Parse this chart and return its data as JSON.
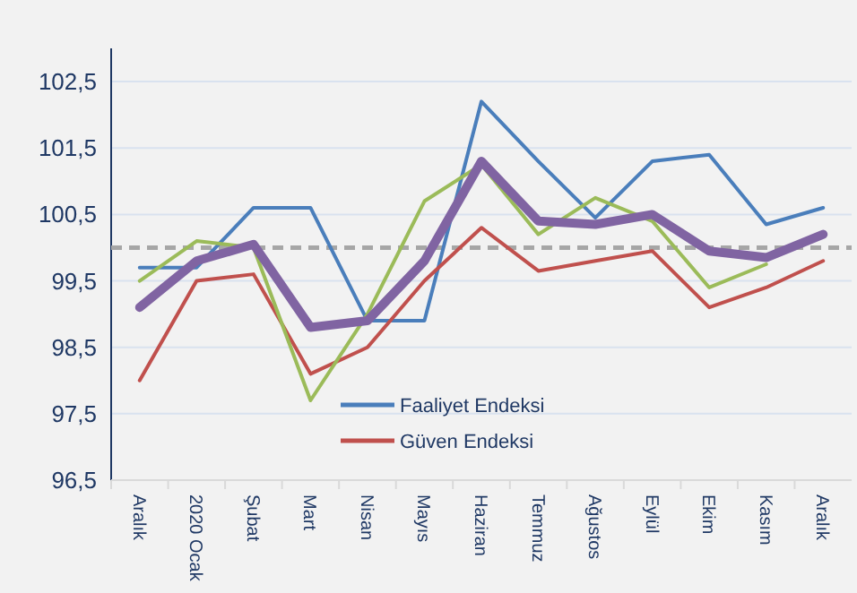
{
  "chart_data": {
    "type": "line",
    "categories": [
      "Aralık",
      "2020 Ocak",
      "Şubat",
      "Mart",
      "Nisan",
      "Mayıs",
      "Haziran",
      "Temmuz",
      "Ağustos",
      "Eylül",
      "Ekim",
      "Kasım",
      "Aralık"
    ],
    "series": [
      {
        "name": "Faaliyet Endeksi",
        "color": "#4a7ebb",
        "values": [
          99.7,
          99.7,
          100.6,
          100.6,
          98.9,
          98.9,
          102.2,
          101.3,
          100.45,
          101.3,
          101.4,
          100.35,
          100.6
        ]
      },
      {
        "name": "Güven Endeksi",
        "color": "#c0504d",
        "values": [
          98.0,
          99.5,
          99.6,
          98.1,
          98.5,
          99.5,
          100.3,
          99.65,
          99.8,
          99.95,
          99.1,
          99.4,
          99.8
        ]
      },
      {
        "color": "#9bbb59",
        "values": [
          99.5,
          100.1,
          100.0,
          97.7,
          99.0,
          100.7,
          101.25,
          100.2,
          100.75,
          100.4,
          99.4,
          99.75,
          null
        ]
      },
      {
        "color": "#8064a2",
        "values": [
          99.1,
          99.8,
          100.05,
          98.8,
          98.9,
          99.8,
          101.3,
          100.4,
          100.35,
          100.5,
          99.95,
          99.85,
          100.2
        ]
      }
    ],
    "ylim": [
      96.5,
      103
    ],
    "yticks": [
      {
        "value": 96.5,
        "label": "96,5"
      },
      {
        "value": 97.5,
        "label": "97,5"
      },
      {
        "value": 98.5,
        "label": "98,5"
      },
      {
        "value": 99.5,
        "label": "99,5"
      },
      {
        "value": 100.5,
        "label": "100,5"
      },
      {
        "value": 101.5,
        "label": "101,5"
      },
      {
        "value": 102.5,
        "label": "102,5"
      }
    ],
    "grid": "y",
    "ref_lines": [
      {
        "axis": "y",
        "value": 100,
        "color": "#a6a6a6",
        "line_style": "dashed"
      }
    ],
    "legend": "bottom",
    "marker": "none",
    "line_style": "solid"
  }
}
